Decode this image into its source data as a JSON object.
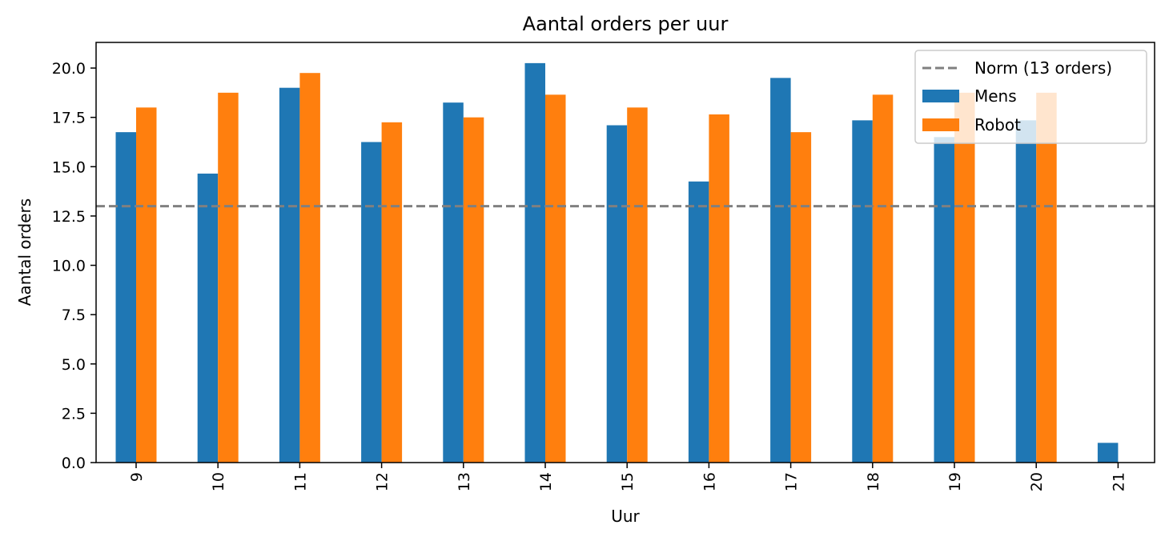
{
  "chart_data": {
    "type": "bar",
    "title": "Aantal orders per uur",
    "xlabel": "Uur",
    "ylabel": "Aantal orders",
    "categories": [
      "9",
      "10",
      "11",
      "12",
      "13",
      "14",
      "15",
      "16",
      "17",
      "18",
      "19",
      "20",
      "21"
    ],
    "series": [
      {
        "name": "Mens",
        "color": "#1f77b4",
        "values": [
          16.75,
          14.65,
          19.0,
          16.25,
          18.25,
          20.25,
          17.1,
          14.25,
          19.5,
          17.35,
          16.5,
          17.35,
          1.0
        ]
      },
      {
        "name": "Robot",
        "color": "#ff7f0e",
        "values": [
          18.0,
          18.75,
          19.75,
          17.25,
          17.5,
          18.65,
          18.0,
          17.65,
          16.75,
          18.65,
          18.75,
          18.75,
          null
        ]
      }
    ],
    "reference_line": {
      "name": "Norm (13 orders)",
      "value": 13,
      "color": "#808080",
      "style": "dashed"
    },
    "ylim": [
      0,
      21.3
    ],
    "yticks": [
      "0.0",
      "2.5",
      "5.0",
      "7.5",
      "10.0",
      "12.5",
      "15.0",
      "17.5",
      "20.0"
    ],
    "grid": false,
    "legend": "top-right"
  }
}
